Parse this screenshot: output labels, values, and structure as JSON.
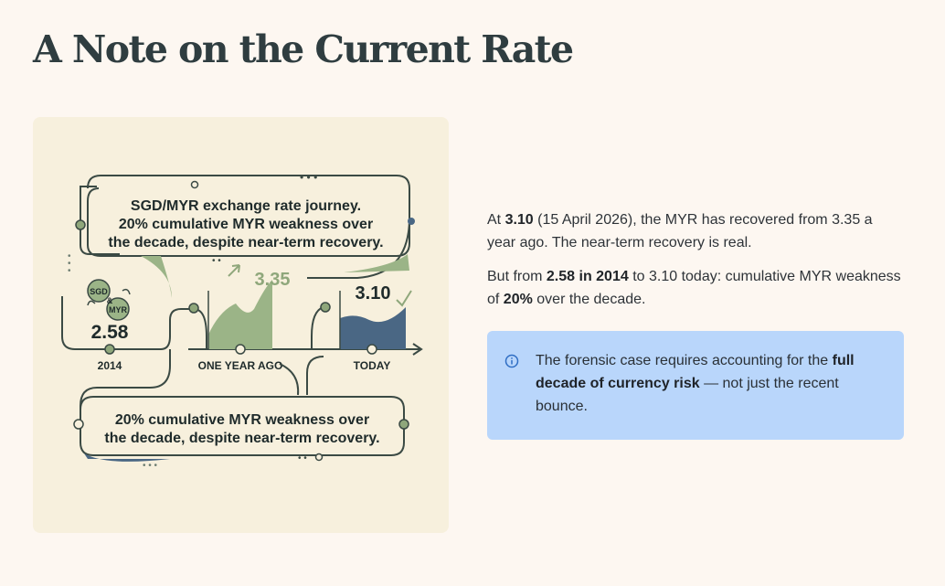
{
  "page": {
    "title": "A Note on the Current Rate"
  },
  "infographic": {
    "header_line1": "SGD/MYR exchange rate journey.",
    "header_line2": "20% cumulative MYR weakness over",
    "header_line3": "the decade, despite near-term recovery.",
    "coin_top": "SGD",
    "coin_mid": "&",
    "coin_bottom": "MYR",
    "value_2014": "2.58",
    "label_2014": "2014",
    "value_year_ago": "3.35",
    "label_year_ago": "ONE YEAR AGO",
    "value_today": "3.10",
    "label_today": "TODAY",
    "footer_line1": "20% cumulative MYR weakness over",
    "footer_line2": "the decade, despite near-term recovery.",
    "colors": {
      "green": "#8fa77b",
      "navy": "#4a6784",
      "line": "#3b4a44"
    }
  },
  "text": {
    "p1_a": "At ",
    "p1_b": "3.10",
    "p1_c": " (15 April 2026), the MYR has recovered from 3.35 a year ago. The near-term recovery is real.",
    "p2_a": "But from ",
    "p2_b": "2.58 in 2014",
    "p2_c": " to 3.10 today: cumulative MYR weakness of ",
    "p2_d": "20%",
    "p2_e": " over the decade."
  },
  "callout": {
    "icon": "info-icon",
    "text_a": "The forensic case requires accounting for the ",
    "text_b": "full decade of currency risk",
    "text_c": " — not just the recent bounce."
  }
}
